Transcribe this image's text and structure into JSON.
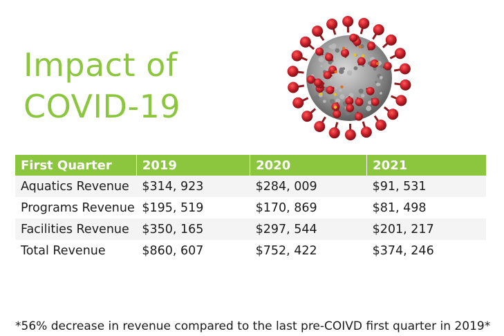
{
  "title": {
    "line1": "Impact of",
    "line2": "COVID-19"
  },
  "image": {
    "icon": "coronavirus-icon",
    "colors": {
      "spike": "#c8202a",
      "body": "#9a9a9a",
      "accent": "#e8c020"
    }
  },
  "colors": {
    "accent": "#8cc63f"
  },
  "table": {
    "headers": [
      "First Quarter",
      "2019",
      "2020",
      "2021"
    ],
    "rows": [
      [
        "Aquatics Revenue",
        "$314, 923",
        "$284, 009",
        "$91, 531"
      ],
      [
        "Programs Revenue",
        "$195, 519",
        "$170, 869",
        "$81, 498"
      ],
      [
        "Facilities Revenue",
        "$350, 165",
        "$297, 544",
        "$201, 217"
      ],
      [
        "Total Revenue",
        "$860, 607",
        "$752, 422",
        "$374, 246"
      ]
    ]
  },
  "footnote": "*56% decrease in revenue compared to the last pre-COIVD first quarter in 2019*"
}
